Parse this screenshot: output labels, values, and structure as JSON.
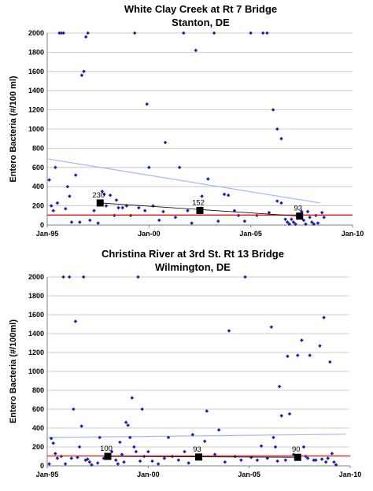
{
  "colors": {
    "points": "#1f1fb4",
    "trend": "#9fb9f2",
    "standard": "#e81010",
    "markers": "#000000",
    "grid": "#bfbfbf"
  },
  "chart_data": [
    {
      "type": "scatter",
      "title": "White Clay Creek at Rt 7 Bridge",
      "subtitle": "Stanton, DE",
      "xlabel": "",
      "ylabel": "Entero Bacteria (#/100 ml)",
      "xlim": [
        1995.0,
        2010.0
      ],
      "ylim": [
        0,
        2000
      ],
      "xticks": [
        1995,
        2000,
        2005,
        2010
      ],
      "xtick_labels": [
        "Jan-95",
        "Jan-00",
        "Jan-05",
        "Jan-10"
      ],
      "yticks": [
        0,
        200,
        400,
        600,
        800,
        1000,
        1200,
        1400,
        1600,
        1800,
        2000
      ],
      "grid": "horizontal",
      "standard_line": 104,
      "trend_line": {
        "x": [
          1995.0,
          2008.4
        ],
        "y": [
          690,
          230
        ]
      },
      "median_line": {
        "x": [
          1997.6,
          2007.4
        ],
        "y": [
          230,
          93
        ]
      },
      "medians": [
        {
          "x": 1997.6,
          "y": 230,
          "label": "230"
        },
        {
          "x": 2002.5,
          "y": 152,
          "label": "152"
        },
        {
          "x": 2007.4,
          "y": 93,
          "label": "93"
        }
      ],
      "points": [
        [
          1995.1,
          470
        ],
        [
          1995.2,
          200
        ],
        [
          1995.3,
          150
        ],
        [
          1995.4,
          600
        ],
        [
          1995.5,
          230
        ],
        [
          1995.6,
          2000
        ],
        [
          1995.7,
          2000
        ],
        [
          1995.8,
          2000
        ],
        [
          1995.9,
          170
        ],
        [
          1996.0,
          400
        ],
        [
          1996.1,
          300
        ],
        [
          1996.2,
          30
        ],
        [
          1996.4,
          520
        ],
        [
          1996.6,
          30
        ],
        [
          1996.7,
          1560
        ],
        [
          1996.8,
          1600
        ],
        [
          1996.9,
          1960
        ],
        [
          1997.0,
          2000
        ],
        [
          1997.1,
          50
        ],
        [
          1997.3,
          150
        ],
        [
          1997.5,
          20
        ],
        [
          1997.7,
          350
        ],
        [
          1997.8,
          320
        ],
        [
          1997.9,
          200
        ],
        [
          1998.1,
          310
        ],
        [
          1998.3,
          100
        ],
        [
          1998.4,
          260
        ],
        [
          1998.5,
          180
        ],
        [
          1998.7,
          180
        ],
        [
          1998.9,
          200
        ],
        [
          1999.1,
          100
        ],
        [
          1999.3,
          2000
        ],
        [
          1999.5,
          180
        ],
        [
          1999.8,
          150
        ],
        [
          1999.9,
          1260
        ],
        [
          2000.0,
          600
        ],
        [
          2000.2,
          200
        ],
        [
          2000.5,
          50
        ],
        [
          2000.7,
          140
        ],
        [
          2000.8,
          860
        ],
        [
          2001.3,
          80
        ],
        [
          2001.5,
          600
        ],
        [
          2001.7,
          2000
        ],
        [
          2001.9,
          150
        ],
        [
          2002.1,
          20
        ],
        [
          2002.3,
          1820
        ],
        [
          2002.5,
          130
        ],
        [
          2002.6,
          300
        ],
        [
          2002.9,
          480
        ],
        [
          2003.2,
          2000
        ],
        [
          2003.4,
          40
        ],
        [
          2003.7,
          320
        ],
        [
          2003.9,
          310
        ],
        [
          2004.2,
          150
        ],
        [
          2004.4,
          100
        ],
        [
          2004.7,
          40
        ],
        [
          2005.0,
          2000
        ],
        [
          2005.3,
          100
        ],
        [
          2005.6,
          2000
        ],
        [
          2005.8,
          2000
        ],
        [
          2005.9,
          130
        ],
        [
          2006.1,
          1200
        ],
        [
          2006.3,
          1000
        ],
        [
          2006.5,
          900
        ],
        [
          2006.3,
          250
        ],
        [
          2006.5,
          230
        ],
        [
          2006.7,
          60
        ],
        [
          2006.8,
          30
        ],
        [
          2006.9,
          10
        ],
        [
          2007.0,
          60
        ],
        [
          2007.1,
          30
        ],
        [
          2007.2,
          10
        ],
        [
          2007.3,
          80
        ],
        [
          2007.5,
          140
        ],
        [
          2007.6,
          50
        ],
        [
          2007.7,
          10
        ],
        [
          2007.8,
          140
        ],
        [
          2007.9,
          80
        ],
        [
          2008.0,
          30
        ],
        [
          2008.1,
          10
        ],
        [
          2008.2,
          100
        ],
        [
          2008.3,
          20
        ],
        [
          2008.5,
          130
        ],
        [
          2008.6,
          80
        ]
      ]
    },
    {
      "type": "scatter",
      "title": "Christina River at 3rd St. Rt 13 Bridge",
      "subtitle": "Wilmington, DE",
      "xlabel": "",
      "ylabel": "Entero Bacteria (#/100ml)",
      "xlim": [
        1995.0,
        2010.0
      ],
      "ylim": [
        0,
        2000
      ],
      "xticks": [
        1995,
        2000,
        2005,
        2010
      ],
      "xtick_labels": [
        "Jan-95",
        "Jan-00",
        "Jan-05",
        "Jan-10"
      ],
      "yticks": [
        0,
        200,
        400,
        600,
        800,
        1000,
        1200,
        1400,
        1600,
        1800,
        2000
      ],
      "grid": "horizontal",
      "standard_line": 104,
      "trend_line": {
        "x": [
          1995.0,
          2009.8
        ],
        "y": [
          300,
          335
        ]
      },
      "median_line": {
        "x": [
          1998.0,
          2007.4
        ],
        "y": [
          100,
          90
        ]
      },
      "medians": [
        {
          "x": 1998.0,
          "y": 100,
          "label": "100"
        },
        {
          "x": 2002.5,
          "y": 93,
          "label": "93"
        },
        {
          "x": 2007.4,
          "y": 90,
          "label": "90"
        }
      ],
      "points": [
        [
          1995.1,
          20
        ],
        [
          1995.2,
          290
        ],
        [
          1995.3,
          240
        ],
        [
          1995.4,
          130
        ],
        [
          1995.5,
          80
        ],
        [
          1995.7,
          100
        ],
        [
          1995.8,
          2000
        ],
        [
          1995.9,
          20
        ],
        [
          1996.1,
          2000
        ],
        [
          1996.2,
          80
        ],
        [
          1996.3,
          600
        ],
        [
          1996.4,
          1530
        ],
        [
          1996.5,
          90
        ],
        [
          1996.6,
          200
        ],
        [
          1996.7,
          420
        ],
        [
          1996.8,
          2000
        ],
        [
          1996.9,
          60
        ],
        [
          1997.0,
          70
        ],
        [
          1997.1,
          40
        ],
        [
          1997.2,
          10
        ],
        [
          1997.5,
          30
        ],
        [
          1997.6,
          300
        ],
        [
          1997.8,
          80
        ],
        [
          1998.0,
          100
        ],
        [
          1998.2,
          150
        ],
        [
          1998.4,
          60
        ],
        [
          1998.5,
          20
        ],
        [
          1998.6,
          250
        ],
        [
          1998.7,
          120
        ],
        [
          1998.8,
          40
        ],
        [
          1998.9,
          460
        ],
        [
          1999.0,
          430
        ],
        [
          1999.1,
          300
        ],
        [
          1999.2,
          720
        ],
        [
          1999.3,
          200
        ],
        [
          1999.4,
          150
        ],
        [
          1999.5,
          2000
        ],
        [
          1999.6,
          50
        ],
        [
          1999.7,
          600
        ],
        [
          1999.8,
          100
        ],
        [
          2000.0,
          150
        ],
        [
          2000.2,
          50
        ],
        [
          2000.5,
          20
        ],
        [
          2000.8,
          80
        ],
        [
          2001.0,
          300
        ],
        [
          2001.2,
          100
        ],
        [
          2001.5,
          60
        ],
        [
          2001.8,
          150
        ],
        [
          2002.0,
          30
        ],
        [
          2002.2,
          330
        ],
        [
          2002.4,
          90
        ],
        [
          2002.8,
          260
        ],
        [
          2002.9,
          580
        ],
        [
          2003.3,
          120
        ],
        [
          2003.5,
          380
        ],
        [
          2003.8,
          40
        ],
        [
          2004.0,
          1430
        ],
        [
          2004.3,
          100
        ],
        [
          2004.6,
          60
        ],
        [
          2004.8,
          2000
        ],
        [
          2005.1,
          90
        ],
        [
          2005.4,
          60
        ],
        [
          2005.6,
          210
        ],
        [
          2005.9,
          80
        ],
        [
          2006.1,
          1470
        ],
        [
          2006.2,
          300
        ],
        [
          2006.3,
          200
        ],
        [
          2006.4,
          50
        ],
        [
          2006.5,
          840
        ],
        [
          2006.6,
          530
        ],
        [
          2006.8,
          60
        ],
        [
          2006.9,
          1160
        ],
        [
          2007.0,
          550
        ],
        [
          2007.2,
          120
        ],
        [
          2007.4,
          1170
        ],
        [
          2007.6,
          1330
        ],
        [
          2007.7,
          200
        ],
        [
          2007.8,
          100
        ],
        [
          2007.9,
          80
        ],
        [
          2008.0,
          1170
        ],
        [
          2008.2,
          60
        ],
        [
          2008.3,
          60
        ],
        [
          2008.5,
          1270
        ],
        [
          2008.6,
          70
        ],
        [
          2008.7,
          1570
        ],
        [
          2008.8,
          40
        ],
        [
          2008.9,
          80
        ],
        [
          2009.0,
          1100
        ],
        [
          2009.1,
          130
        ],
        [
          2009.2,
          40
        ],
        [
          2009.3,
          10
        ]
      ]
    }
  ]
}
